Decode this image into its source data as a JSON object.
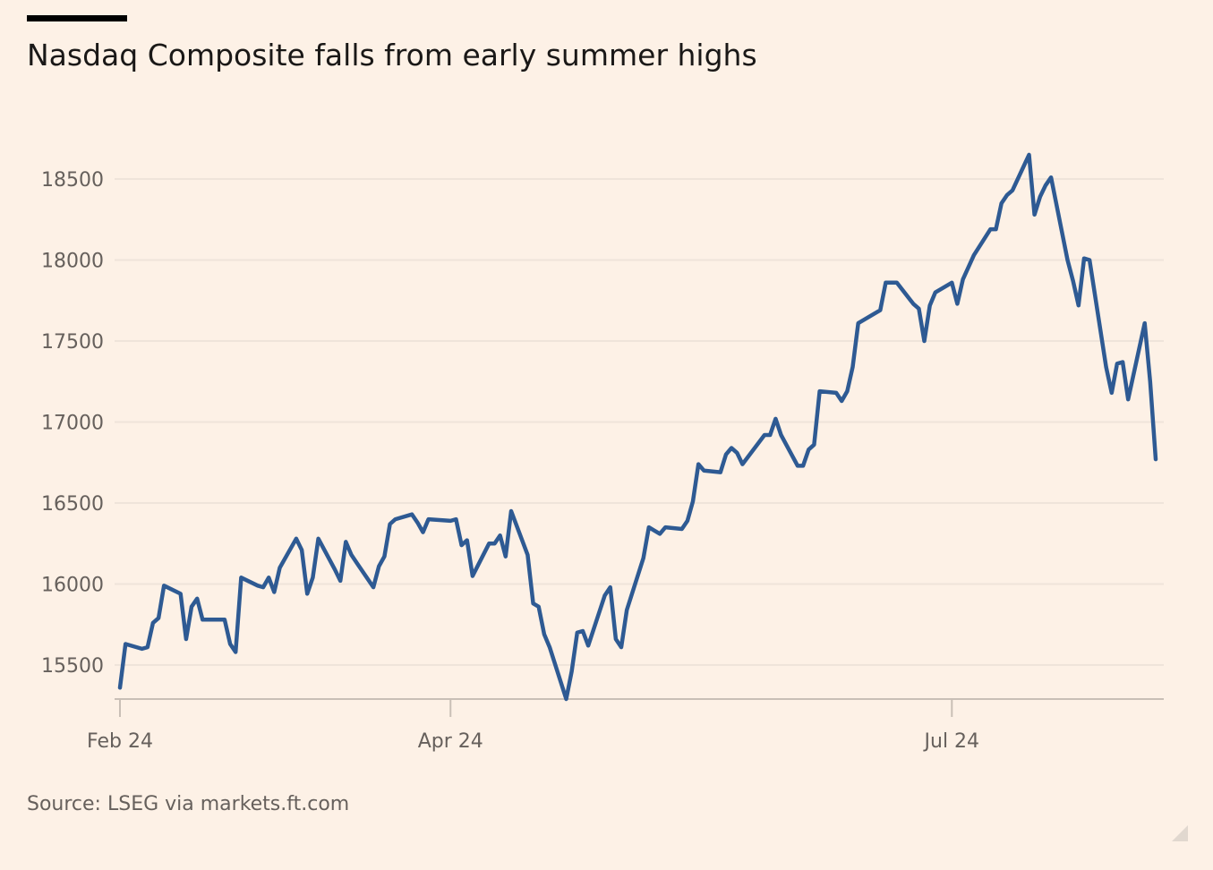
{
  "title": "Nasdaq Composite falls from early summer highs",
  "source": "Source: LSEG via markets.ft.com",
  "colors": {
    "background": "#fdf1e6",
    "line": "#2e5a93",
    "gridline": "#efe4da",
    "axis": "#c9bfb6",
    "text": "#66605c",
    "title": "#1a1817"
  },
  "chart_data": {
    "type": "line",
    "title": "Nasdaq Composite falls from early summer highs",
    "xlabel": "",
    "ylabel": "",
    "ylim": [
      15250,
      18800
    ],
    "grid": true,
    "legend": "none",
    "y_ticks": [
      15500,
      16000,
      16500,
      17000,
      17500,
      18000,
      18500
    ],
    "y_tick_labels": [
      "15500",
      "16000",
      "16500",
      "17000",
      "17500",
      "18000",
      "18500"
    ],
    "x_ticks": [
      {
        "label": "Feb 24",
        "date": "2024-02-01"
      },
      {
        "label": "Apr 24",
        "date": "2024-04-01"
      },
      {
        "label": "Jul 24",
        "date": "2024-07-01"
      }
    ],
    "series": [
      {
        "values": [
          [
            "2024-02-01",
            15360
          ],
          [
            "2024-02-02",
            15630
          ],
          [
            "2024-02-05",
            15600
          ],
          [
            "2024-02-06",
            15610
          ],
          [
            "2024-02-07",
            15760
          ],
          [
            "2024-02-08",
            15790
          ],
          [
            "2024-02-09",
            15990
          ],
          [
            "2024-02-12",
            15940
          ],
          [
            "2024-02-13",
            15660
          ],
          [
            "2024-02-14",
            15860
          ],
          [
            "2024-02-15",
            15910
          ],
          [
            "2024-02-16",
            15780
          ],
          [
            "2024-02-20",
            15780
          ],
          [
            "2024-02-21",
            15630
          ],
          [
            "2024-02-22",
            15580
          ],
          [
            "2024-02-23",
            16040
          ],
          [
            "2024-02-26",
            15990
          ],
          [
            "2024-02-27",
            15980
          ],
          [
            "2024-02-28",
            16040
          ],
          [
            "2024-02-29",
            15950
          ],
          [
            "2024-03-01",
            16100
          ],
          [
            "2024-03-04",
            16280
          ],
          [
            "2024-03-05",
            16210
          ],
          [
            "2024-03-06",
            15940
          ],
          [
            "2024-03-07",
            16040
          ],
          [
            "2024-03-08",
            16280
          ],
          [
            "2024-03-11",
            16090
          ],
          [
            "2024-03-12",
            16020
          ],
          [
            "2024-03-13",
            16260
          ],
          [
            "2024-03-14",
            16180
          ],
          [
            "2024-03-15",
            16130
          ],
          [
            "2024-03-18",
            15980
          ],
          [
            "2024-03-19",
            16110
          ],
          [
            "2024-03-20",
            16170
          ],
          [
            "2024-03-21",
            16370
          ],
          [
            "2024-03-22",
            16400
          ],
          [
            "2024-03-25",
            16430
          ],
          [
            "2024-03-26",
            16380
          ],
          [
            "2024-03-27",
            16320
          ],
          [
            "2024-03-28",
            16400
          ],
          [
            "2024-04-01",
            16390
          ],
          [
            "2024-04-02",
            16400
          ],
          [
            "2024-04-03",
            16240
          ],
          [
            "2024-04-04",
            16270
          ],
          [
            "2024-04-05",
            16050
          ],
          [
            "2024-04-08",
            16250
          ],
          [
            "2024-04-09",
            16250
          ],
          [
            "2024-04-10",
            16300
          ],
          [
            "2024-04-11",
            16170
          ],
          [
            "2024-04-12",
            16450
          ],
          [
            "2024-04-15",
            16180
          ],
          [
            "2024-04-16",
            15880
          ],
          [
            "2024-04-17",
            15860
          ],
          [
            "2024-04-18",
            15690
          ],
          [
            "2024-04-19",
            15610
          ],
          [
            "2024-04-22",
            15290
          ],
          [
            "2024-04-23",
            15460
          ],
          [
            "2024-04-24",
            15700
          ],
          [
            "2024-04-25",
            15710
          ],
          [
            "2024-04-26",
            15620
          ],
          [
            "2024-04-29",
            15930
          ],
          [
            "2024-04-30",
            15980
          ],
          [
            "2024-05-01",
            15660
          ],
          [
            "2024-05-02",
            15610
          ],
          [
            "2024-05-03",
            15840
          ],
          [
            "2024-05-06",
            16160
          ],
          [
            "2024-05-07",
            16350
          ],
          [
            "2024-05-08",
            16330
          ],
          [
            "2024-05-09",
            16310
          ],
          [
            "2024-05-10",
            16350
          ],
          [
            "2024-05-13",
            16340
          ],
          [
            "2024-05-14",
            16390
          ],
          [
            "2024-05-15",
            16510
          ],
          [
            "2024-05-16",
            16740
          ],
          [
            "2024-05-17",
            16700
          ],
          [
            "2024-05-20",
            16690
          ],
          [
            "2024-05-21",
            16800
          ],
          [
            "2024-05-22",
            16840
          ],
          [
            "2024-05-23",
            16810
          ],
          [
            "2024-05-24",
            16740
          ],
          [
            "2024-05-28",
            16920
          ],
          [
            "2024-05-29",
            16920
          ],
          [
            "2024-05-30",
            17020
          ],
          [
            "2024-05-31",
            16920
          ],
          [
            "2024-06-03",
            16730
          ],
          [
            "2024-06-04",
            16730
          ],
          [
            "2024-06-05",
            16830
          ],
          [
            "2024-06-06",
            16860
          ],
          [
            "2024-06-07",
            17190
          ],
          [
            "2024-06-10",
            17180
          ],
          [
            "2024-06-11",
            17130
          ],
          [
            "2024-06-12",
            17190
          ],
          [
            "2024-06-13",
            17340
          ],
          [
            "2024-06-14",
            17610
          ],
          [
            "2024-06-17",
            17670
          ],
          [
            "2024-06-18",
            17690
          ],
          [
            "2024-06-19",
            17860
          ],
          [
            "2024-06-20",
            17860
          ],
          [
            "2024-06-21",
            17860
          ],
          [
            "2024-06-24",
            17730
          ],
          [
            "2024-06-25",
            17700
          ],
          [
            "2024-06-26",
            17500
          ],
          [
            "2024-06-27",
            17720
          ],
          [
            "2024-06-28",
            17800
          ],
          [
            "2024-07-01",
            17860
          ],
          [
            "2024-07-02",
            17730
          ],
          [
            "2024-07-03",
            17880
          ],
          [
            "2024-07-05",
            18030
          ],
          [
            "2024-07-08",
            18190
          ],
          [
            "2024-07-09",
            18190
          ],
          [
            "2024-07-10",
            18350
          ],
          [
            "2024-07-11",
            18400
          ],
          [
            "2024-07-12",
            18430
          ],
          [
            "2024-07-15",
            18650
          ],
          [
            "2024-07-16",
            18280
          ],
          [
            "2024-07-17",
            18390
          ],
          [
            "2024-07-18",
            18460
          ],
          [
            "2024-07-19",
            18510
          ],
          [
            "2024-07-22",
            18000
          ],
          [
            "2024-07-23",
            17870
          ],
          [
            "2024-07-24",
            17720
          ],
          [
            "2024-07-25",
            18010
          ],
          [
            "2024-07-26",
            18000
          ],
          [
            "2024-07-29",
            17340
          ],
          [
            "2024-07-30",
            17180
          ],
          [
            "2024-07-31",
            17360
          ],
          [
            "2024-08-01",
            17370
          ],
          [
            "2024-08-02",
            17140
          ],
          [
            "2024-08-05",
            17610
          ],
          [
            "2024-08-06",
            17250
          ],
          [
            "2024-08-07",
            16770
          ]
        ]
      }
    ]
  }
}
